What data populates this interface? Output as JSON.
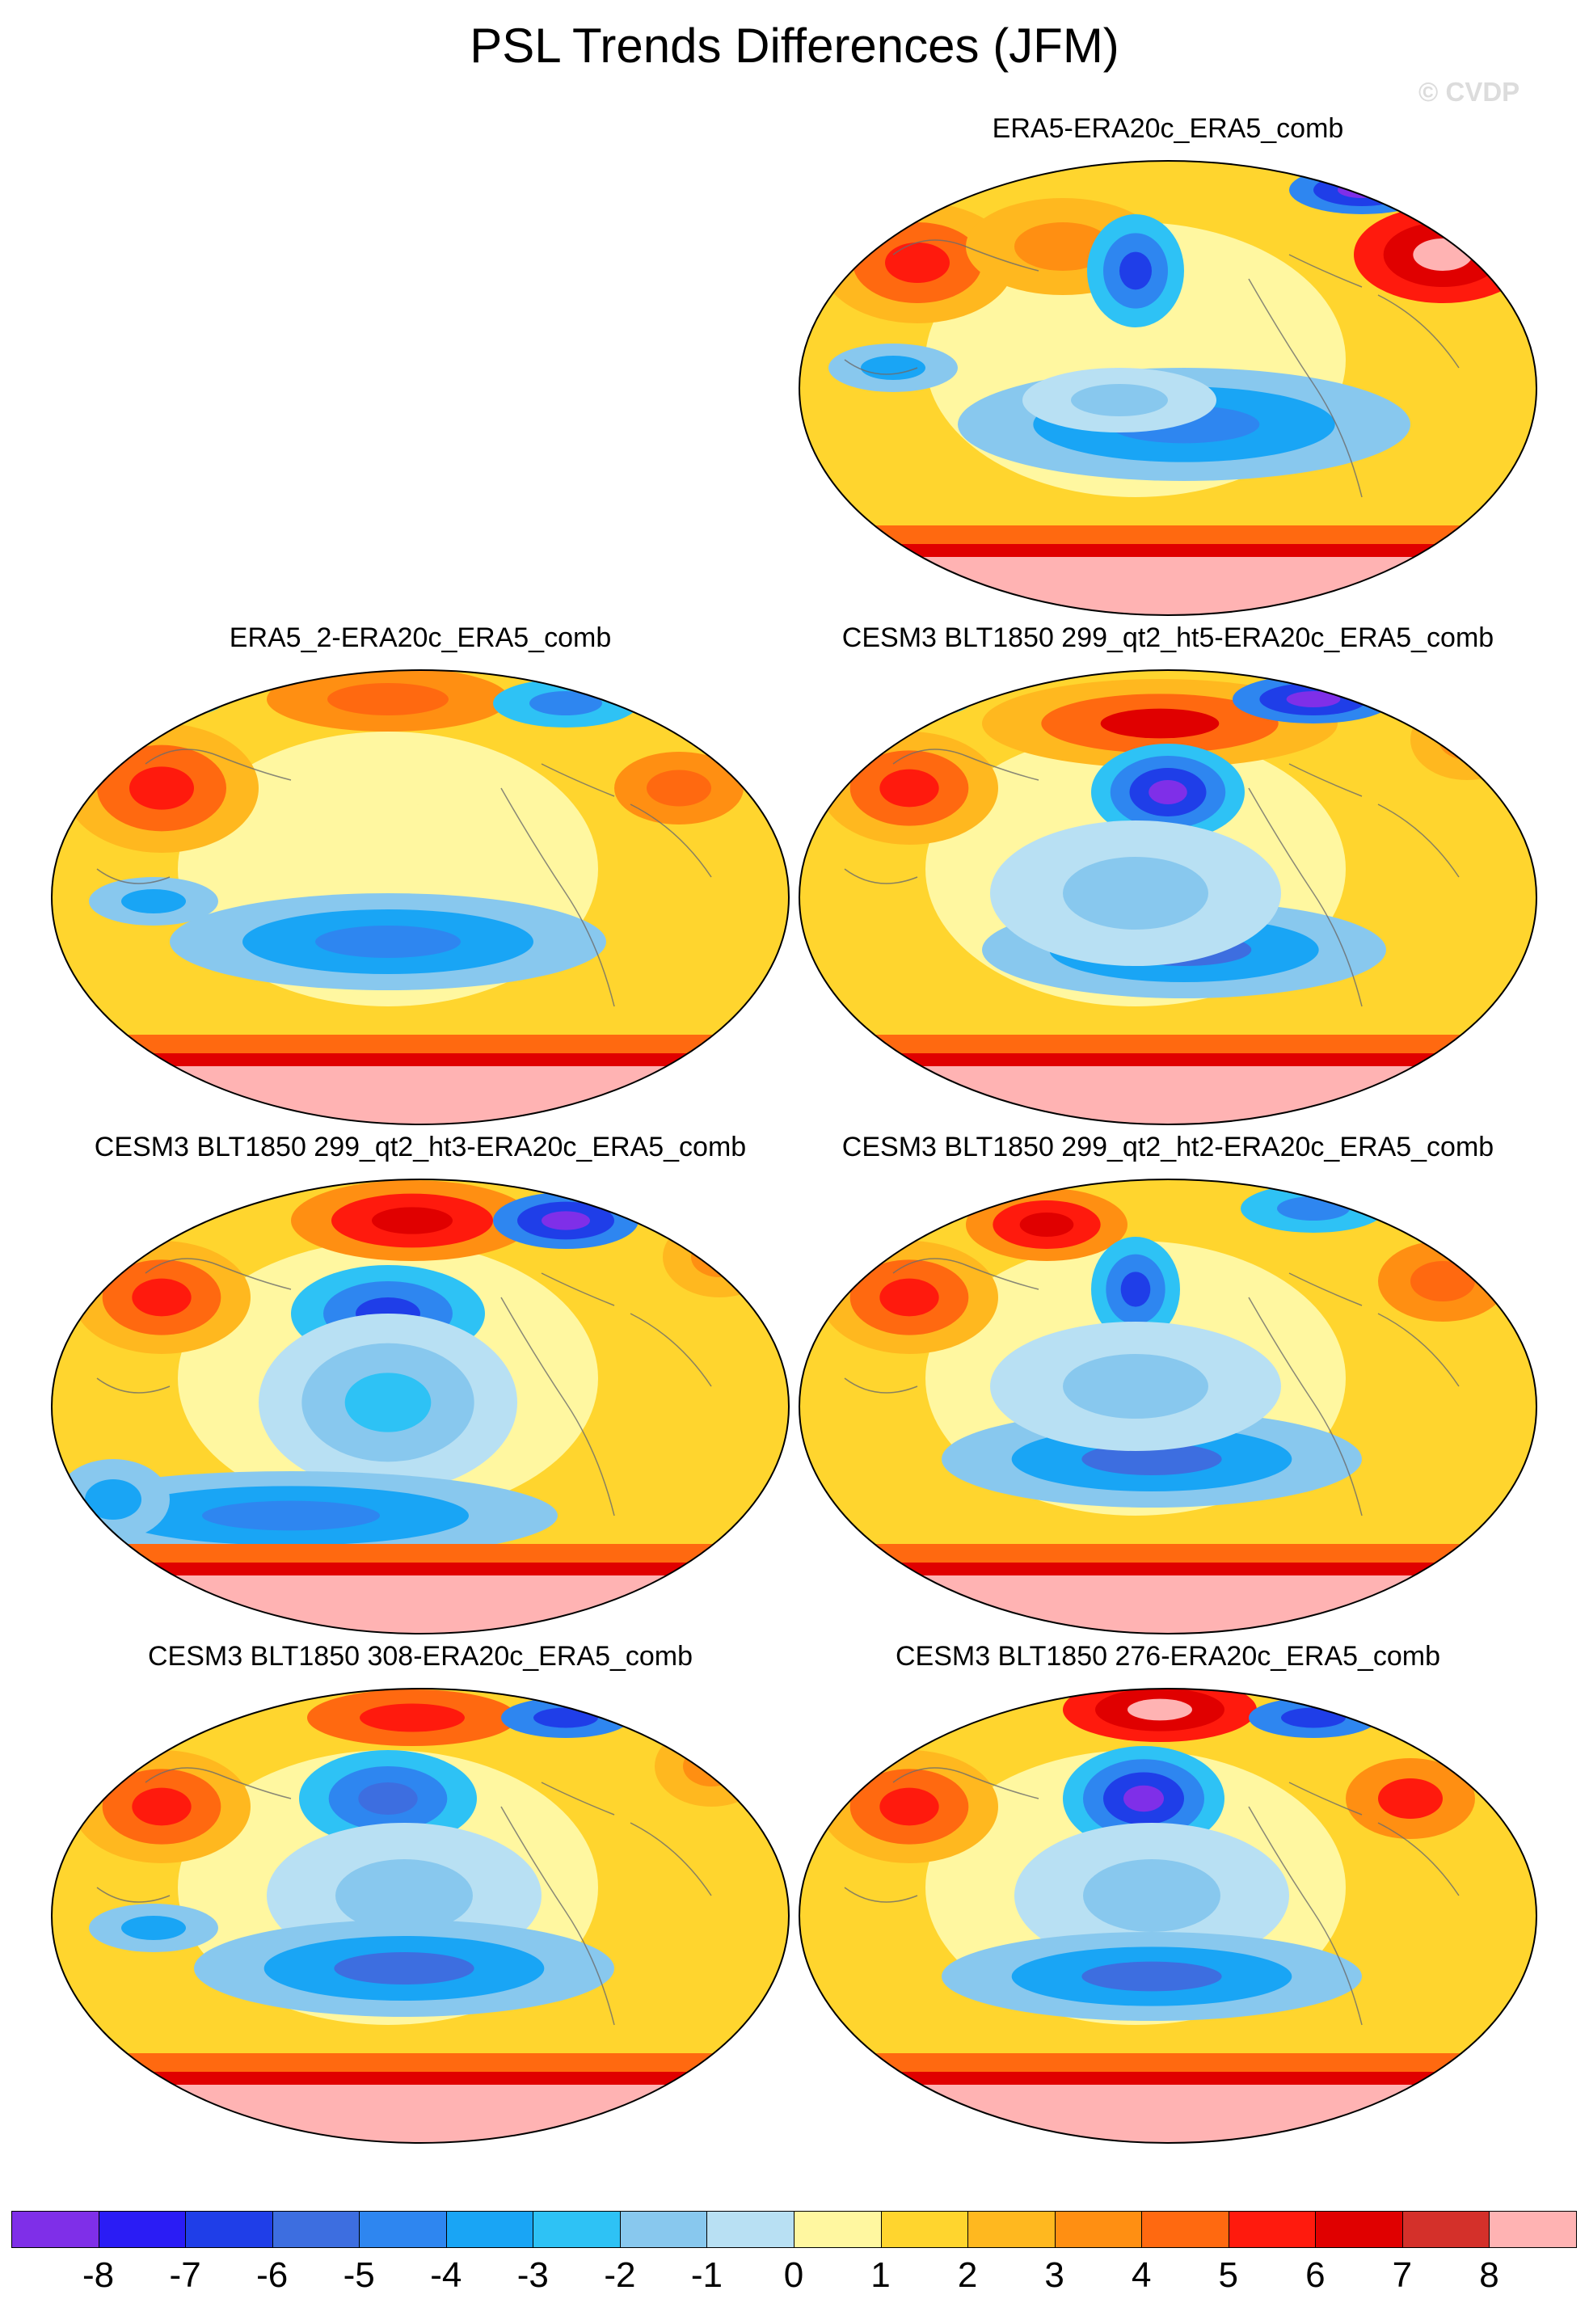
{
  "title": "PSL Trends Differences (JFM)",
  "watermark": "© CVDP",
  "colorbar": {
    "colors": [
      "#7f2fe8",
      "#2a1cf5",
      "#1f3ee8",
      "#3d6ee0",
      "#2e86f0",
      "#19a5f5",
      "#2ec2f5",
      "#88c8ee",
      "#b8e0f3",
      "#fff7a0",
      "#ffd52e",
      "#ffb81f",
      "#ff8f12",
      "#ff6910",
      "#ff1a0d",
      "#e00000",
      "#d4302a",
      "#ffb3b3"
    ],
    "labels": [
      "-8",
      "-7",
      "-6",
      "-5",
      "-4",
      "-3",
      "-2",
      "-1",
      "0",
      "1",
      "2",
      "3",
      "4",
      "5",
      "6",
      "7",
      "8"
    ]
  },
  "panels": [
    {
      "title": "ERA5-ERA20c_ERA5_comb",
      "style": "era5"
    },
    {
      "title": "ERA5_2-ERA20c_ERA5_comb",
      "style": "era5b"
    },
    {
      "title": "CESM3 BLT1850 299_qt2_ht5-ERA20c_ERA5_comb",
      "style": "ht5"
    },
    {
      "title": "CESM3 BLT1850 299_qt2_ht3-ERA20c_ERA5_comb",
      "style": "ht3"
    },
    {
      "title": "CESM3 BLT1850 299_qt2_ht2-ERA20c_ERA5_comb",
      "style": "ht2"
    },
    {
      "title": "CESM3 BLT1850 308-ERA20c_ERA5_comb",
      "style": "b308"
    },
    {
      "title": "CESM3 BLT1850 276-ERA20c_ERA5_comb",
      "style": "b276"
    }
  ]
}
